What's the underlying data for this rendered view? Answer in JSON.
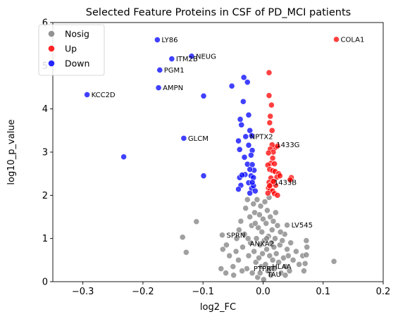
{
  "chart_data": {
    "type": "scatter",
    "title": "Selected Feature Proteins in CSF of PD_MCI patients",
    "xlabel": "log2_FC",
    "ylabel": "log10_p_value",
    "xlim": [
      -0.35,
      0.2
    ],
    "ylim": [
      0,
      6
    ],
    "xticks": [
      -0.3,
      -0.2,
      -0.1,
      0.0,
      0.1,
      0.2
    ],
    "xtick_labels": [
      "−0.3",
      "−0.2",
      "−0.1",
      "0.0",
      "0.1",
      "0.2"
    ],
    "yticks": [
      0,
      1,
      2,
      3,
      4,
      5,
      6
    ],
    "ytick_labels": [
      "0",
      "1",
      "2",
      "3",
      "4",
      "5",
      "6"
    ],
    "grid": false,
    "legend": {
      "placement": "top-left",
      "entries": [
        {
          "name": "Nosig",
          "color": "#808080"
        },
        {
          "name": "Up",
          "color": "#ff0000"
        },
        {
          "name": "Down",
          "color": "#0000ff"
        }
      ]
    },
    "series": [
      {
        "name": "Down",
        "color": "#0000ff",
        "points": [
          [
            -0.293,
            4.33
          ],
          [
            -0.232,
            2.89
          ],
          [
            -0.176,
            5.6
          ],
          [
            -0.172,
            4.9
          ],
          [
            -0.174,
            4.49
          ],
          [
            -0.152,
            5.16
          ],
          [
            -0.132,
            3.32
          ],
          [
            -0.119,
            5.22
          ],
          [
            -0.099,
            4.3
          ],
          [
            -0.099,
            2.45
          ],
          [
            -0.052,
            4.53
          ],
          [
            -0.032,
            4.73
          ],
          [
            -0.026,
            4.62
          ],
          [
            -0.033,
            4.17
          ],
          [
            -0.038,
            3.76
          ],
          [
            -0.036,
            3.63
          ],
          [
            -0.024,
            3.86
          ],
          [
            -0.041,
            3.26
          ],
          [
            -0.029,
            3.36
          ],
          [
            -0.022,
            3.5
          ],
          [
            -0.019,
            3.38
          ],
          [
            -0.024,
            3.16
          ],
          [
            -0.018,
            3.04
          ],
          [
            -0.02,
            2.93
          ],
          [
            -0.039,
            3.06
          ],
          [
            -0.031,
            2.88
          ],
          [
            -0.026,
            2.72
          ],
          [
            -0.018,
            2.71
          ],
          [
            -0.015,
            2.58
          ],
          [
            -0.022,
            2.6
          ],
          [
            -0.03,
            2.48
          ],
          [
            -0.02,
            2.45
          ],
          [
            -0.016,
            2.41
          ],
          [
            -0.039,
            2.41
          ],
          [
            -0.037,
            2.23
          ],
          [
            -0.024,
            2.29
          ],
          [
            -0.019,
            2.16
          ],
          [
            -0.016,
            2.22
          ],
          [
            -0.022,
            2.05
          ],
          [
            -0.041,
            2.14
          ],
          [
            -0.035,
            2.47
          ],
          [
            -0.018,
            2.3
          ],
          [
            -0.013,
            2.1
          ]
        ]
      },
      {
        "name": "Up",
        "color": "#ff0000",
        "points": [
          [
            0.122,
            5.61
          ],
          [
            0.01,
            4.84
          ],
          [
            0.01,
            4.31
          ],
          [
            0.014,
            4.09
          ],
          [
            0.012,
            3.83
          ],
          [
            0.011,
            3.68
          ],
          [
            0.015,
            3.5
          ],
          [
            0.02,
            3.1
          ],
          [
            0.024,
            3.14
          ],
          [
            0.015,
            3.17
          ],
          [
            0.012,
            3.07
          ],
          [
            0.017,
            3.0
          ],
          [
            0.009,
            2.98
          ],
          [
            0.016,
            2.86
          ],
          [
            0.013,
            2.74
          ],
          [
            0.019,
            2.73
          ],
          [
            0.008,
            2.7
          ],
          [
            0.011,
            2.6
          ],
          [
            0.016,
            2.57
          ],
          [
            0.02,
            2.55
          ],
          [
            0.026,
            2.5
          ],
          [
            0.013,
            2.4
          ],
          [
            0.023,
            2.42
          ],
          [
            0.047,
            2.41
          ],
          [
            0.045,
            2.36
          ],
          [
            0.018,
            2.33
          ],
          [
            0.01,
            2.3
          ],
          [
            0.014,
            2.26
          ],
          [
            0.021,
            2.23
          ],
          [
            0.009,
            2.17
          ],
          [
            0.012,
            2.13
          ],
          [
            0.016,
            2.1
          ],
          [
            0.008,
            2.05
          ],
          [
            0.019,
            2.04
          ],
          [
            0.024,
            2.0
          ],
          [
            0.011,
            2.22
          ],
          [
            0.017,
            2.32
          ],
          [
            0.028,
            2.45
          ]
        ]
      },
      {
        "name": "Nosig",
        "color": "#808080",
        "points": [
          [
            -0.111,
            1.39
          ],
          [
            -0.134,
            1.03
          ],
          [
            -0.128,
            0.68
          ],
          [
            -0.068,
            1.08
          ],
          [
            -0.061,
            0.85
          ],
          [
            -0.067,
            0.75
          ],
          [
            -0.056,
            0.6
          ],
          [
            -0.05,
            0.35
          ],
          [
            -0.049,
            0.15
          ],
          [
            -0.044,
            1.0
          ],
          [
            -0.04,
            1.2
          ],
          [
            -0.041,
            0.5
          ],
          [
            -0.037,
            1.4
          ],
          [
            -0.034,
            0.8
          ],
          [
            -0.031,
            1.1
          ],
          [
            -0.029,
            1.7
          ],
          [
            -0.027,
            0.3
          ],
          [
            -0.026,
            1.9
          ],
          [
            -0.024,
            0.6
          ],
          [
            -0.022,
            1.5
          ],
          [
            -0.021,
            0.9
          ],
          [
            -0.019,
            1.3
          ],
          [
            -0.018,
            0.2
          ],
          [
            -0.016,
            1.8
          ],
          [
            -0.015,
            0.7
          ],
          [
            -0.014,
            1.6
          ],
          [
            -0.012,
            0.45
          ],
          [
            -0.011,
            1.0
          ],
          [
            -0.01,
            1.9
          ],
          [
            -0.009,
            0.1
          ],
          [
            -0.008,
            1.25
          ],
          [
            -0.007,
            0.55
          ],
          [
            -0.006,
            1.55
          ],
          [
            -0.005,
            0.85
          ],
          [
            -0.004,
            1.75
          ],
          [
            -0.003,
            0.35
          ],
          [
            -0.002,
            1.15
          ],
          [
            -0.001,
            0.65
          ],
          [
            0.0,
            1.45
          ],
          [
            0.001,
            0.05
          ],
          [
            0.002,
            0.95
          ],
          [
            0.003,
            1.85
          ],
          [
            0.004,
            0.4
          ],
          [
            0.005,
            1.35
          ],
          [
            0.006,
            0.75
          ],
          [
            0.007,
            1.65
          ],
          [
            0.008,
            0.25
          ],
          [
            0.009,
            1.05
          ],
          [
            0.01,
            1.95
          ],
          [
            0.011,
            0.6
          ],
          [
            0.012,
            1.5
          ],
          [
            0.013,
            0.15
          ],
          [
            0.014,
            0.9
          ],
          [
            0.015,
            1.2
          ],
          [
            0.016,
            0.5
          ],
          [
            0.017,
            1.4
          ],
          [
            0.018,
            0.8
          ],
          [
            0.019,
            0.3
          ],
          [
            0.02,
            1.0
          ],
          [
            0.022,
            0.65
          ],
          [
            0.024,
            1.3
          ],
          [
            0.026,
            0.45
          ],
          [
            0.028,
            0.85
          ],
          [
            0.03,
            0.2
          ],
          [
            0.032,
            0.95
          ],
          [
            0.034,
            0.55
          ],
          [
            0.036,
            1.1
          ],
          [
            0.038,
            0.35
          ],
          [
            0.04,
            0.75
          ],
          [
            0.042,
            0.6
          ],
          [
            0.044,
            0.25
          ],
          [
            0.046,
            0.9
          ],
          [
            0.05,
            0.5
          ],
          [
            0.055,
            0.7
          ],
          [
            0.06,
            0.4
          ],
          [
            0.066,
            0.6
          ],
          [
            0.072,
            0.95
          ],
          [
            0.073,
            0.8
          ],
          [
            0.072,
            0.62
          ],
          [
            0.07,
            0.42
          ],
          [
            0.068,
            0.25
          ],
          [
            0.118,
            0.47
          ],
          [
            0.04,
            1.31
          ],
          [
            -0.07,
            0.3
          ],
          [
            -0.062,
            0.2
          ],
          [
            -0.045,
            0.7
          ],
          [
            -0.035,
            0.25
          ],
          [
            -0.025,
            1.0
          ],
          [
            -0.013,
            1.35
          ],
          [
            -0.005,
            0.2
          ],
          [
            0.006,
            1.0
          ],
          [
            0.011,
            0.3
          ],
          [
            0.021,
            1.6
          ],
          [
            0.029,
            1.15
          ],
          [
            0.037,
            0.15
          ]
        ]
      }
    ],
    "annotations": [
      {
        "text": "COLA1",
        "x": 0.122,
        "y": 5.61
      },
      {
        "text": "LY86",
        "x": -0.176,
        "y": 5.6
      },
      {
        "text": "NEUG",
        "x": -0.119,
        "y": 5.22
      },
      {
        "text": "ITM2B",
        "x": -0.152,
        "y": 5.16
      },
      {
        "text": "PGM1",
        "x": -0.172,
        "y": 4.9
      },
      {
        "text": "AMPN",
        "x": -0.174,
        "y": 4.49
      },
      {
        "text": "KCC2D",
        "x": -0.293,
        "y": 4.33
      },
      {
        "text": "GLCM",
        "x": -0.132,
        "y": 3.32
      },
      {
        "text": "NPTX2",
        "x": -0.029,
        "y": 3.36
      },
      {
        "text": "1433G",
        "x": 0.015,
        "y": 3.17
      },
      {
        "text": "1433B",
        "x": 0.011,
        "y": 2.3
      },
      {
        "text": "LV545",
        "x": 0.04,
        "y": 1.31
      },
      {
        "text": "SPRN",
        "x": -0.068,
        "y": 1.08
      },
      {
        "text": "ANXA2",
        "x": -0.029,
        "y": 0.88
      },
      {
        "text": "PTPRT",
        "x": -0.023,
        "y": 0.3
      },
      {
        "text": "HLAA",
        "x": 0.008,
        "y": 0.35
      },
      {
        "text": "TAU",
        "x": 0.0,
        "y": 0.17
      }
    ]
  }
}
